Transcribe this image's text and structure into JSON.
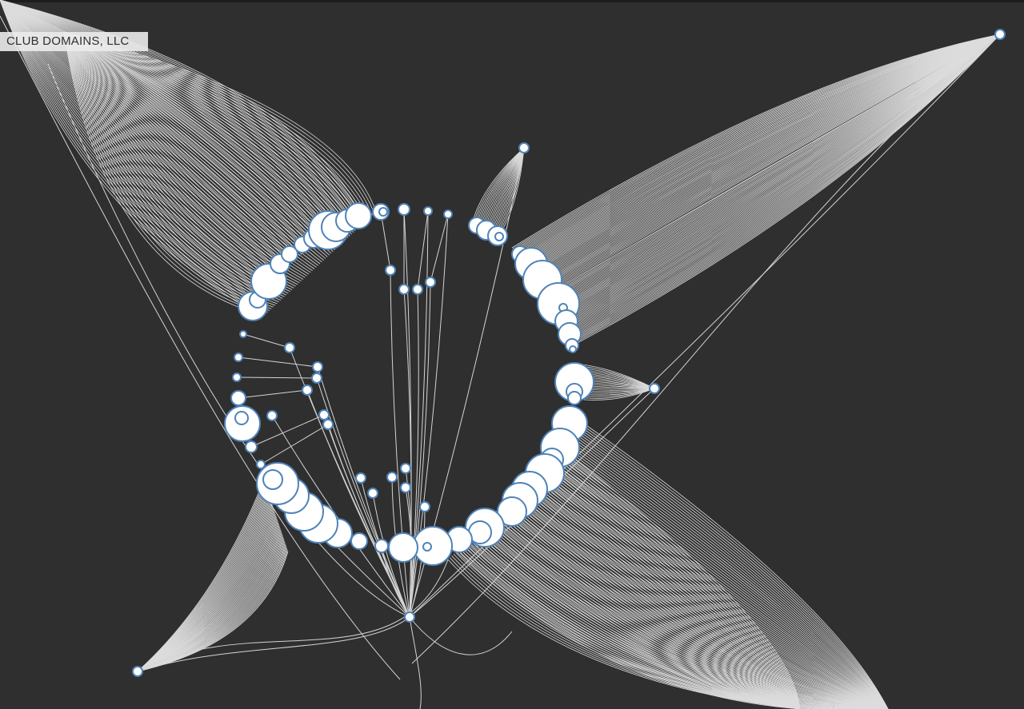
{
  "hover_label": "CLUB DOMAINS, LLC",
  "colors": {
    "background": "#2f2f2f",
    "node_fill": "#ffffff",
    "node_stroke": "#4f83b8",
    "edge": "#d4d4d4"
  }
}
